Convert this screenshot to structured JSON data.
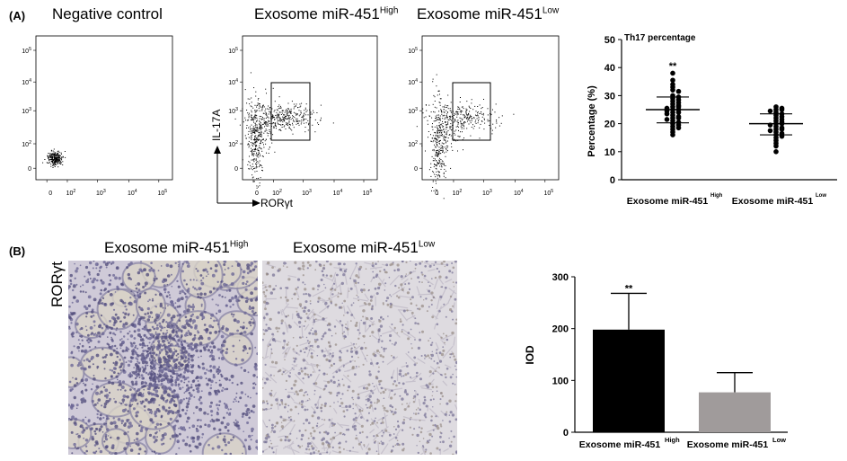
{
  "panel_a": {
    "label": "(A)",
    "plots": [
      {
        "title": "Negative control",
        "title_sup": ""
      },
      {
        "title": "Exosome miR-451",
        "title_sup": "High"
      },
      {
        "title": "Exosome miR-451",
        "title_sup": "Low"
      }
    ],
    "flow_ticks_x": [
      "0",
      "10",
      "10",
      "10",
      "10"
    ],
    "flow_tick_exps": [
      "",
      "2",
      "3",
      "4",
      "5"
    ],
    "flow_ticks_y": [
      "10",
      "10",
      "10",
      "10",
      "0"
    ],
    "flow_ticks_y_exps": [
      "5",
      "4",
      "3",
      "2",
      ""
    ],
    "flow_axis_y_label": "IL-17A",
    "flow_axis_x_label": "RORγt"
  },
  "panel_b": {
    "label": "(B)",
    "ihc_titles": [
      {
        "title": "Exosome miR-451",
        "title_sup": "High"
      },
      {
        "title": "Exosome miR-451",
        "title_sup": "Low"
      }
    ],
    "row_label": "RORγt"
  },
  "chart_data": [
    {
      "type": "scatter",
      "title": "Th17 percentage",
      "ylabel": "Percentage (%)",
      "xlabel": "",
      "ylim": [
        0,
        50
      ],
      "yticks": [
        "0",
        "10",
        "20",
        "30",
        "40",
        "50"
      ],
      "categories": [
        "Exosome miR-451",
        "Exosome miR-451"
      ],
      "category_sups": [
        "High",
        "Low"
      ],
      "series": [
        {
          "values": [
            38,
            35.5,
            34,
            33,
            32,
            31.5,
            30,
            29.5,
            29,
            28.5,
            28,
            27.5,
            27,
            26.5,
            26,
            26,
            25.5,
            25,
            25,
            24.5,
            24,
            24,
            23.5,
            23,
            22.5,
            22,
            22,
            21.5,
            21,
            20.5,
            20,
            19.5,
            19,
            18.5,
            18,
            17,
            16
          ],
          "mean": 25,
          "sd_low": 20.3,
          "sd_high": 29.5
        },
        {
          "values": [
            26,
            25.5,
            25,
            25,
            24.5,
            24,
            23.5,
            23,
            22.5,
            22,
            21.5,
            21,
            20.5,
            20,
            20,
            19.5,
            19,
            18.5,
            18,
            18,
            17.5,
            17,
            16.5,
            16,
            15.5,
            15,
            14,
            13,
            12,
            10
          ],
          "mean": 20,
          "sd_low": 16,
          "sd_high": 23.5
        }
      ],
      "annotations": [
        {
          "category": 0,
          "text": "**"
        }
      ],
      "colors": {
        "points": "#000000"
      }
    },
    {
      "type": "bar",
      "title": "",
      "ylabel": "IOD",
      "xlabel": "",
      "ylim": [
        0,
        300
      ],
      "yticks": [
        "0",
        "100",
        "200",
        "300"
      ],
      "categories": [
        "Exosome miR-451",
        "Exosome miR-451"
      ],
      "category_sups": [
        "High",
        "Low"
      ],
      "values": [
        198,
        77
      ],
      "errors": [
        70,
        38
      ],
      "annotations": [
        {
          "category": 0,
          "text": "**"
        }
      ],
      "colors": {
        "bars": [
          "#000000",
          "#a09b9b"
        ]
      }
    }
  ]
}
